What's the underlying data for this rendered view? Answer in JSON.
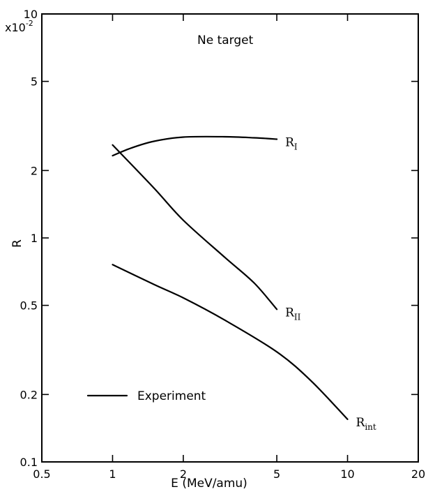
{
  "chart_data": {
    "type": "line",
    "title": "Ne target",
    "xlabel": "E (MeV/amu)",
    "ylabel": "R",
    "y_scale_label": "x10",
    "y_scale_exponent": "-2",
    "x_scale": "log",
    "y_scale": "log",
    "xlim": [
      0.5,
      20
    ],
    "ylim": [
      0.1,
      10
    ],
    "x_ticks": [
      "0.5",
      "1",
      "2",
      "5",
      "10",
      "20"
    ],
    "x_tick_values": [
      0.5,
      1,
      2,
      5,
      10,
      20
    ],
    "y_ticks": [
      "0.1",
      "0.2",
      "0.5",
      "1",
      "2",
      "5",
      "10"
    ],
    "y_tick_values": [
      0.1,
      0.2,
      0.5,
      1,
      2,
      5,
      10
    ],
    "grid": false,
    "legend": {
      "label": "Experiment",
      "position": "lower-left"
    },
    "series": [
      {
        "name": "R",
        "sub": "I",
        "x": [
          1.0,
          1.2,
          1.5,
          2.0,
          3.0,
          4.0,
          5.0
        ],
        "y": [
          2.33,
          2.52,
          2.7,
          2.82,
          2.83,
          2.8,
          2.76
        ]
      },
      {
        "name": "R",
        "sub": "II",
        "x": [
          1.0,
          1.5,
          2.0,
          3.0,
          4.0,
          5.0
        ],
        "y": [
          2.6,
          1.67,
          1.2,
          0.82,
          0.63,
          0.48
        ]
      },
      {
        "name": "R",
        "sub": "int",
        "x": [
          1.0,
          1.5,
          2.0,
          3.0,
          5.0,
          7.0,
          10.0
        ],
        "y": [
          0.76,
          0.62,
          0.54,
          0.43,
          0.31,
          0.23,
          0.155
        ]
      }
    ]
  }
}
